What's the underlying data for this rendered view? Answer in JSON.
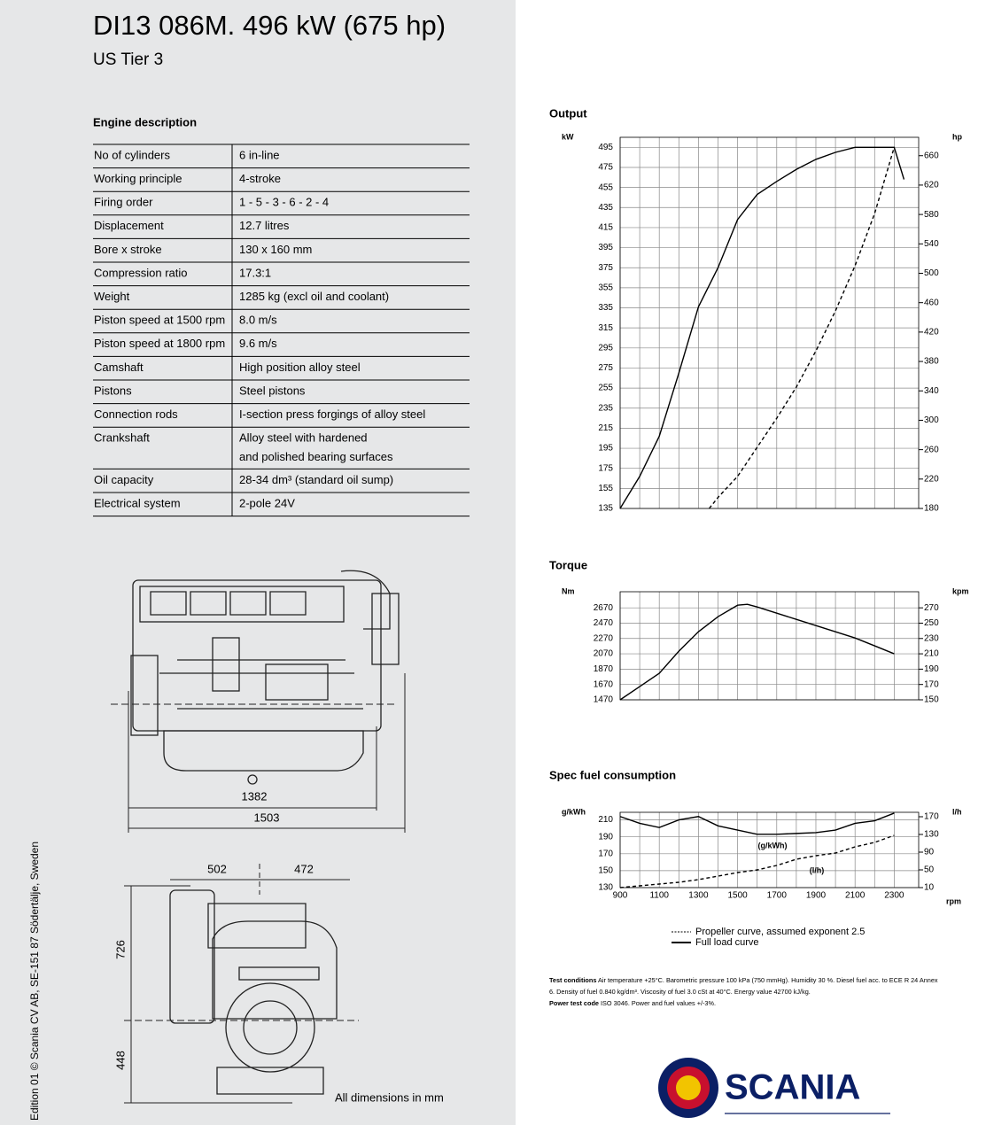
{
  "header": {
    "title": "DI13 086M. 496 kW (675 hp)",
    "subtitle": "US Tier 3"
  },
  "table": {
    "title": "Engine description",
    "rows": [
      [
        "No of cylinders",
        "6 in-line"
      ],
      [
        "Working principle",
        "4-stroke"
      ],
      [
        "Firing order",
        "1 - 5 - 3 - 6 - 2 - 4"
      ],
      [
        "Displacement",
        "12.7 litres"
      ],
      [
        "Bore x stroke",
        "130 x 160 mm"
      ],
      [
        "Compression ratio",
        "17.3:1"
      ],
      [
        "Weight",
        "1285 kg (excl oil and coolant)"
      ],
      [
        "Piston speed at 1500 rpm",
        "8.0 m/s"
      ],
      [
        "Piston speed at 1800 rpm",
        "9.6 m/s"
      ],
      [
        "Camshaft",
        "High position alloy steel"
      ],
      [
        "Pistons",
        "Steel pistons"
      ],
      [
        "Connection rods",
        "I-section press forgings of alloy steel"
      ],
      [
        "Crankshaft",
        [
          "Alloy steel with hardened",
          "and polished bearing surfaces"
        ]
      ],
      [
        "Oil capacity",
        "28-34 dm³  (standard oil sump)"
      ],
      [
        "Electrical system",
        "2-pole 24V"
      ]
    ]
  },
  "drawing": {
    "dimensions": [
      1382,
      1503,
      502,
      472,
      726,
      448
    ],
    "note": "All dimensions in mm"
  },
  "chart_data": [
    {
      "type": "line",
      "title": "Output",
      "y_label": "kW",
      "y2_label": "hp",
      "xlim": [
        900,
        2425
      ],
      "ylim": [
        135,
        505
      ],
      "yticks": [
        135,
        155,
        175,
        195,
        215,
        235,
        255,
        275,
        295,
        315,
        335,
        355,
        375,
        395,
        415,
        435,
        455,
        475,
        495
      ],
      "y2lim": [
        180,
        685
      ],
      "y2ticks": [
        180,
        220,
        260,
        300,
        340,
        380,
        420,
        460,
        500,
        540,
        580,
        620,
        660
      ],
      "series": [
        {
          "name": "Propeller curve, assumed exponent  2.5",
          "color": "#000000",
          "dashed": true,
          "x": [
            1355,
            1400,
            1500,
            1600,
            1700,
            1800,
            1900,
            2000,
            2100,
            2200,
            2300
          ],
          "values": [
            135,
            146,
            167,
            196,
            225,
            256,
            292,
            332,
            377,
            429,
            495
          ]
        },
        {
          "name": "Full load curve",
          "color": "#000000",
          "dashed": false,
          "x": [
            900,
            1000,
            1100,
            1200,
            1300,
            1400,
            1500,
            1600,
            1700,
            1800,
            1900,
            2000,
            2100,
            2200,
            2300,
            2350
          ],
          "values": [
            135,
            167,
            207,
            270,
            336,
            375,
            423,
            448,
            461,
            473,
            483,
            490,
            495,
            495,
            495,
            463
          ]
        }
      ]
    },
    {
      "type": "line",
      "title": "Torque",
      "y_label": "Nm",
      "y2_label": "kpm",
      "xlim": [
        900,
        2425
      ],
      "ylim": [
        1470,
        2880
      ],
      "yticks": [
        1470,
        1670,
        1870,
        2070,
        2270,
        2470,
        2670
      ],
      "y2lim": [
        150,
        291
      ],
      "y2ticks": [
        150,
        170,
        190,
        210,
        230,
        250,
        270
      ],
      "series": [
        {
          "color": "#000000",
          "dashed": false,
          "x": [
            900,
            1000,
            1100,
            1200,
            1300,
            1400,
            1500,
            1550,
            1600,
            1700,
            1800,
            1900,
            2000,
            2100,
            2200,
            2300
          ],
          "values": [
            1470,
            1643,
            1816,
            2104,
            2358,
            2554,
            2704,
            2716,
            2681,
            2600,
            2520,
            2439,
            2358,
            2277,
            2174,
            2070
          ]
        }
      ]
    },
    {
      "type": "line",
      "title": "Spec fuel consumption",
      "y_label": "g/kWh",
      "y2_label": "l/h",
      "x_label": "rpm",
      "xlim": [
        900,
        2425
      ],
      "xticks": [
        900,
        1100,
        1300,
        1500,
        1700,
        1900,
        2100,
        2300
      ],
      "ylim": [
        130,
        219
      ],
      "yticks": [
        130,
        150,
        170,
        190,
        210
      ],
      "y2lim": [
        10,
        180
      ],
      "y2ticks": [
        10,
        50,
        90,
        130,
        170
      ],
      "series": [
        {
          "name": "(g/kWh)",
          "color": "#000000",
          "dashed": false,
          "x": [
            900,
            1000,
            1100,
            1200,
            1300,
            1400,
            1500,
            1600,
            1700,
            1800,
            1900,
            2000,
            2100,
            2200,
            2300
          ],
          "values": [
            214,
            206,
            201,
            210,
            214,
            203,
            198,
            193,
            193,
            194,
            195,
            198,
            206,
            209,
            218
          ]
        },
        {
          "name": "(l/h)",
          "color": "#000000",
          "dashed": true,
          "axis": "y2",
          "x": [
            900,
            1000,
            1100,
            1200,
            1300,
            1400,
            1500,
            1600,
            1700,
            1800,
            1900,
            2000,
            2100,
            2200,
            2300
          ],
          "values": [
            10,
            14,
            18,
            22,
            28,
            36,
            44,
            50,
            60,
            74,
            82,
            88,
            102,
            112,
            128
          ]
        }
      ]
    }
  ],
  "notes": [
    [
      {
        "text": "Test conditions",
        "bold": true
      },
      {
        "text": " Air temperature +25°C. Barometric pressure 100 kPa (750 mmHg). Humidity 30 %. Diesel fuel acc. to ECE R 24 Annex 6. Density of fuel 0.840 kg/dm³. Viscosity of fuel 3.0 cSt at 40°C. Energy value 42700 kJ/kg.",
        "bold": false
      }
    ],
    [
      {
        "text": "Power test code",
        "bold": true
      },
      {
        "text": " ISO 3046. Power and fuel values +/-3%.",
        "bold": false
      }
    ]
  ],
  "logo": "SCANIA",
  "edition": "Edition 01 © Scania CV AB, SE-151 87  Södertälje, Sweden"
}
